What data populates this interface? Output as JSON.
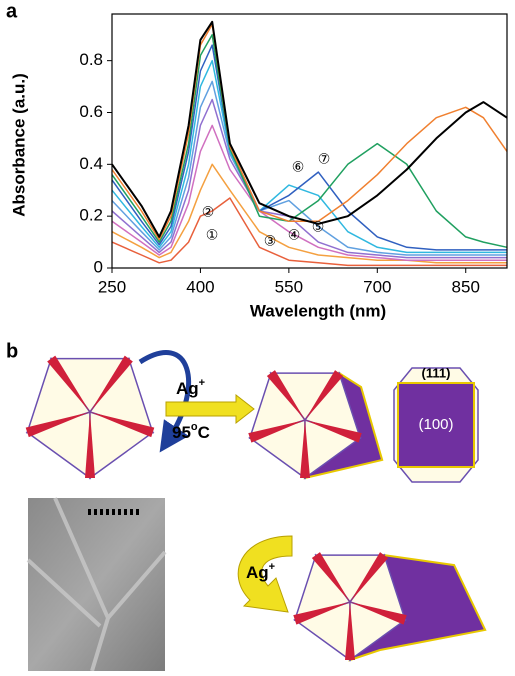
{
  "chart_data": {
    "type": "line",
    "panel": "a",
    "xlabel": "Wavelength (nm)",
    "ylabel": "Absorbance (a.u.)",
    "x": [
      250,
      300,
      330,
      350,
      380,
      400,
      420,
      450,
      500,
      550,
      600,
      650,
      700,
      750,
      800,
      850,
      880,
      920
    ],
    "xlim": [
      250,
      920
    ],
    "xticks": [
      250,
      400,
      550,
      700,
      850
    ],
    "ylim": [
      0,
      0.98
    ],
    "yticks": [
      0,
      0.2,
      0.4,
      0.6,
      0.8
    ],
    "series": [
      {
        "color": "#e8603c",
        "values": [
          0.1,
          0.05,
          0.02,
          0.03,
          0.1,
          0.2,
          0.22,
          0.27,
          0.08,
          0.03,
          0.02,
          0.01,
          0.01,
          0.01,
          0.01,
          0.01,
          0.01,
          0.01
        ]
      },
      {
        "color": "#f4a040",
        "values": [
          0.14,
          0.08,
          0.04,
          0.06,
          0.18,
          0.3,
          0.4,
          0.3,
          0.14,
          0.08,
          0.05,
          0.04,
          0.03,
          0.03,
          0.02,
          0.02,
          0.02,
          0.02
        ]
      },
      {
        "color": "#d070c0",
        "values": [
          0.18,
          0.1,
          0.05,
          0.08,
          0.25,
          0.45,
          0.55,
          0.38,
          0.22,
          0.14,
          0.08,
          0.05,
          0.04,
          0.03,
          0.03,
          0.03,
          0.03,
          0.03
        ]
      },
      {
        "color": "#9070d0",
        "values": [
          0.22,
          0.12,
          0.06,
          0.1,
          0.3,
          0.55,
          0.65,
          0.42,
          0.22,
          0.2,
          0.1,
          0.06,
          0.05,
          0.04,
          0.04,
          0.04,
          0.04,
          0.04
        ]
      },
      {
        "color": "#60a0e0",
        "values": [
          0.26,
          0.14,
          0.07,
          0.12,
          0.35,
          0.62,
          0.72,
          0.44,
          0.22,
          0.26,
          0.16,
          0.08,
          0.06,
          0.05,
          0.05,
          0.05,
          0.05,
          0.05
        ]
      },
      {
        "color": "#30b8e0",
        "values": [
          0.3,
          0.16,
          0.08,
          0.14,
          0.4,
          0.7,
          0.8,
          0.45,
          0.22,
          0.32,
          0.28,
          0.14,
          0.08,
          0.06,
          0.06,
          0.06,
          0.06,
          0.06
        ]
      },
      {
        "color": "#3060c0",
        "values": [
          0.34,
          0.18,
          0.09,
          0.16,
          0.45,
          0.76,
          0.86,
          0.46,
          0.22,
          0.28,
          0.37,
          0.22,
          0.12,
          0.08,
          0.07,
          0.07,
          0.07,
          0.07
        ]
      },
      {
        "color": "#20a060",
        "values": [
          0.36,
          0.2,
          0.1,
          0.18,
          0.48,
          0.82,
          0.9,
          0.46,
          0.2,
          0.18,
          0.26,
          0.4,
          0.48,
          0.4,
          0.22,
          0.12,
          0.1,
          0.08
        ]
      },
      {
        "color": "#f08030",
        "values": [
          0.38,
          0.22,
          0.11,
          0.2,
          0.52,
          0.86,
          0.94,
          0.47,
          0.22,
          0.18,
          0.18,
          0.26,
          0.36,
          0.48,
          0.58,
          0.62,
          0.58,
          0.45
        ]
      },
      {
        "color": "#000000",
        "values": [
          0.4,
          0.24,
          0.12,
          0.22,
          0.55,
          0.88,
          0.95,
          0.48,
          0.25,
          0.2,
          0.17,
          0.2,
          0.28,
          0.38,
          0.5,
          0.6,
          0.64,
          0.58
        ]
      }
    ],
    "annotations": [
      "①",
      "②",
      "③",
      "④",
      "⑤",
      "⑥",
      "⑦"
    ]
  },
  "panel_b": {
    "label": "b",
    "reagent": "Ag",
    "charge": "+",
    "temperature": "95",
    "degree": "o",
    "unit": "C",
    "second_reagent": "Ag",
    "second_charge": "+",
    "facet_top": "(111)",
    "facet_face": "(100)"
  }
}
